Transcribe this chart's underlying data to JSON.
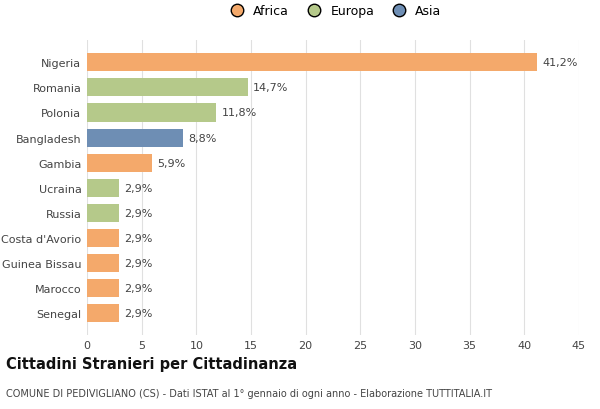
{
  "countries": [
    "Nigeria",
    "Romania",
    "Polonia",
    "Bangladesh",
    "Gambia",
    "Ucraina",
    "Russia",
    "Costa d'Avorio",
    "Guinea Bissau",
    "Marocco",
    "Senegal"
  ],
  "values": [
    41.2,
    14.7,
    11.8,
    8.8,
    5.9,
    2.9,
    2.9,
    2.9,
    2.9,
    2.9,
    2.9
  ],
  "labels": [
    "41,2%",
    "14,7%",
    "11,8%",
    "8,8%",
    "5,9%",
    "2,9%",
    "2,9%",
    "2,9%",
    "2,9%",
    "2,9%",
    "2,9%"
  ],
  "colors": [
    "#F4A96B",
    "#B5C98A",
    "#B5C98A",
    "#6E8EB4",
    "#F4A96B",
    "#B5C98A",
    "#B5C98A",
    "#F4A96B",
    "#F4A96B",
    "#F4A96B",
    "#F4A96B"
  ],
  "legend_labels": [
    "Africa",
    "Europa",
    "Asia"
  ],
  "legend_colors": [
    "#F4A96B",
    "#B5C98A",
    "#6E8EB4"
  ],
  "xlim": [
    0,
    45
  ],
  "xticks": [
    0,
    5,
    10,
    15,
    20,
    25,
    30,
    35,
    40,
    45
  ],
  "title": "Cittadini Stranieri per Cittadinanza",
  "subtitle": "COMUNE DI PEDIVIGLIANO (CS) - Dati ISTAT al 1° gennaio di ogni anno - Elaborazione TUTTITALIA.IT",
  "background_color": "#ffffff",
  "grid_color": "#e0e0e0",
  "bar_height": 0.72,
  "label_fontsize": 8,
  "tick_fontsize": 8,
  "title_fontsize": 10.5,
  "subtitle_fontsize": 7
}
